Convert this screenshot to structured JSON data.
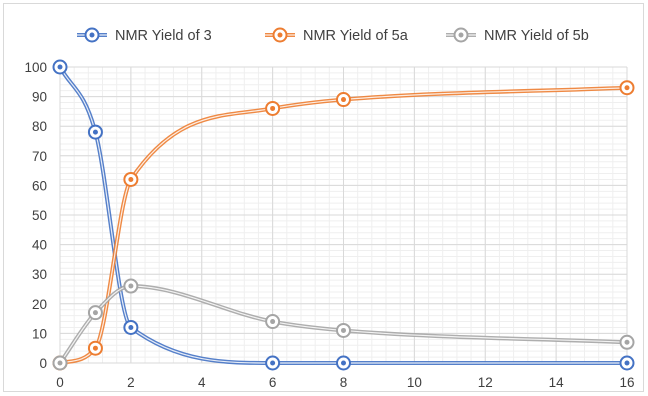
{
  "chart_data": {
    "type": "line",
    "title": "",
    "xlabel": "",
    "ylabel": "",
    "x": [
      0,
      1,
      2,
      6,
      8,
      16
    ],
    "xlim": [
      0,
      16
    ],
    "ylim": [
      0,
      100
    ],
    "x_ticks": [
      0,
      2,
      4,
      6,
      8,
      10,
      12,
      14,
      16
    ],
    "y_ticks": [
      0,
      10,
      20,
      30,
      40,
      50,
      60,
      70,
      80,
      90,
      100
    ],
    "grid": true,
    "smooth": true,
    "legend_position": "top",
    "series": [
      {
        "name": "NMR Yield of 3",
        "color": "#4472c4",
        "values": [
          100,
          78,
          12,
          0,
          0,
          0
        ]
      },
      {
        "name": "NMR Yield of 5a",
        "color": "#ed7d31",
        "values": [
          0,
          5,
          62,
          86,
          89,
          93
        ]
      },
      {
        "name": "NMR Yield of 5b",
        "color": "#a5a5a5",
        "values": [
          0,
          17,
          26,
          14,
          11,
          7
        ]
      }
    ]
  }
}
